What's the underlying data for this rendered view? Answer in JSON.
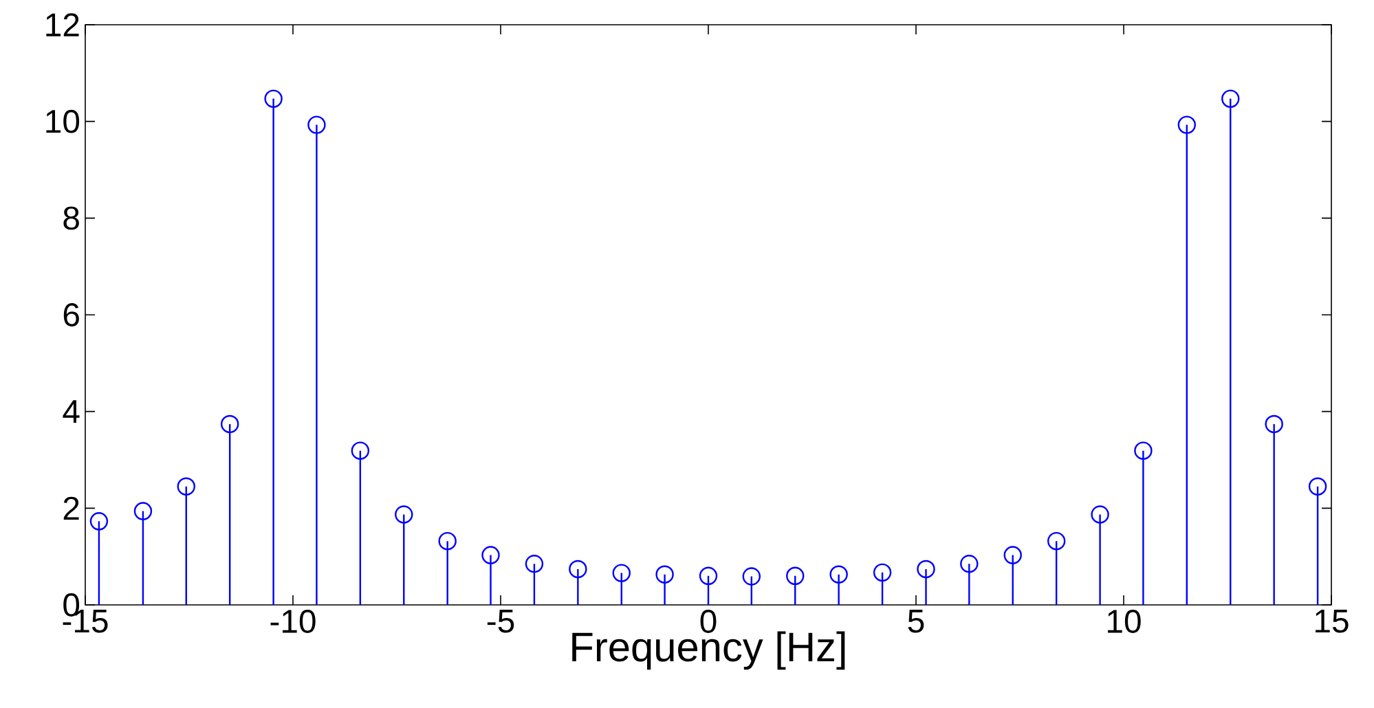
{
  "chart_data": {
    "type": "lollipop",
    "xlabel": "Frequency [Hz]",
    "x": [
      -14.67,
      -13.61,
      -12.57,
      -11.52,
      -10.47,
      -9.43,
      -8.38,
      -7.33,
      -6.28,
      -5.24,
      -4.19,
      -3.14,
      -2.09,
      -1.05,
      0,
      1.04,
      2.09,
      3.14,
      4.19,
      5.24,
      6.28,
      7.33,
      8.38,
      9.43,
      10.47,
      11.52,
      12.57,
      13.62,
      14.67
    ],
    "values": [
      1.73,
      1.94,
      2.45,
      3.74,
      10.47,
      9.93,
      3.19,
      1.87,
      1.32,
      1.03,
      0.85,
      0.74,
      0.66,
      0.63,
      0.6,
      0.59,
      0.6,
      0.63,
      0.67,
      0.74,
      0.85,
      1.03,
      1.32,
      1.87,
      3.19,
      9.93,
      10.47,
      3.74,
      2.45
    ],
    "color": "#0000ff",
    "marker": "circle",
    "xlim": [
      -15,
      15
    ],
    "ylim": [
      0,
      12
    ],
    "xticks": [
      -15,
      -10,
      -5,
      0,
      5,
      10,
      15
    ],
    "yticks": [
      0,
      2,
      4,
      6,
      8,
      10,
      12
    ]
  }
}
